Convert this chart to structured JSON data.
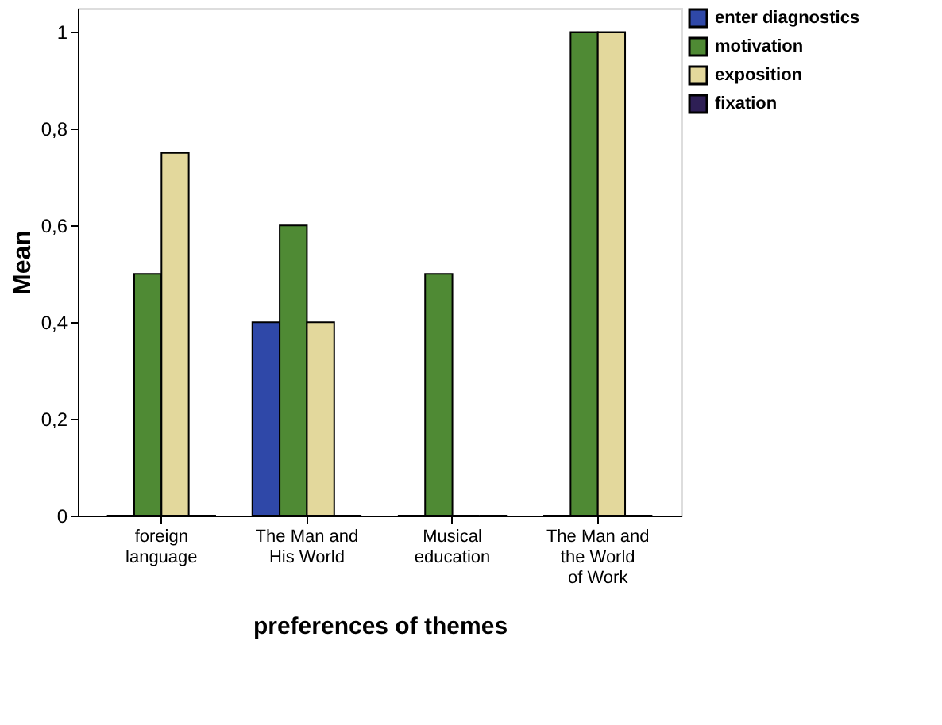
{
  "chart_data": {
    "type": "bar",
    "xlabel": "preferences of themes",
    "ylabel": "Mean",
    "categories": [
      "foreign language",
      "The Man and His World",
      "Musical education",
      "The Man and the World of Work"
    ],
    "series": [
      {
        "name": "enter diagnostics",
        "color": "#2f48a8",
        "values": [
          0,
          0.4,
          0,
          0
        ]
      },
      {
        "name": "motivation",
        "color": "#4f8a34",
        "values": [
          0.5,
          0.6,
          0.5,
          1
        ]
      },
      {
        "name": "exposition",
        "color": "#e3d89c",
        "values": [
          0.75,
          0.4,
          0,
          1
        ]
      },
      {
        "name": "fixation",
        "color": "#2e1f55",
        "values": [
          0,
          0,
          0,
          0
        ]
      }
    ],
    "ylim": [
      0,
      1.05
    ],
    "yticks": [
      0,
      {
        "value": 0.2,
        "label": "0,2"
      },
      {
        "value": 0.4,
        "label": "0,4"
      },
      {
        "value": 0.6,
        "label": "0,6"
      },
      {
        "value": 0.8,
        "label": "0,8"
      },
      1
    ],
    "grid": false,
    "legend": "top right"
  }
}
